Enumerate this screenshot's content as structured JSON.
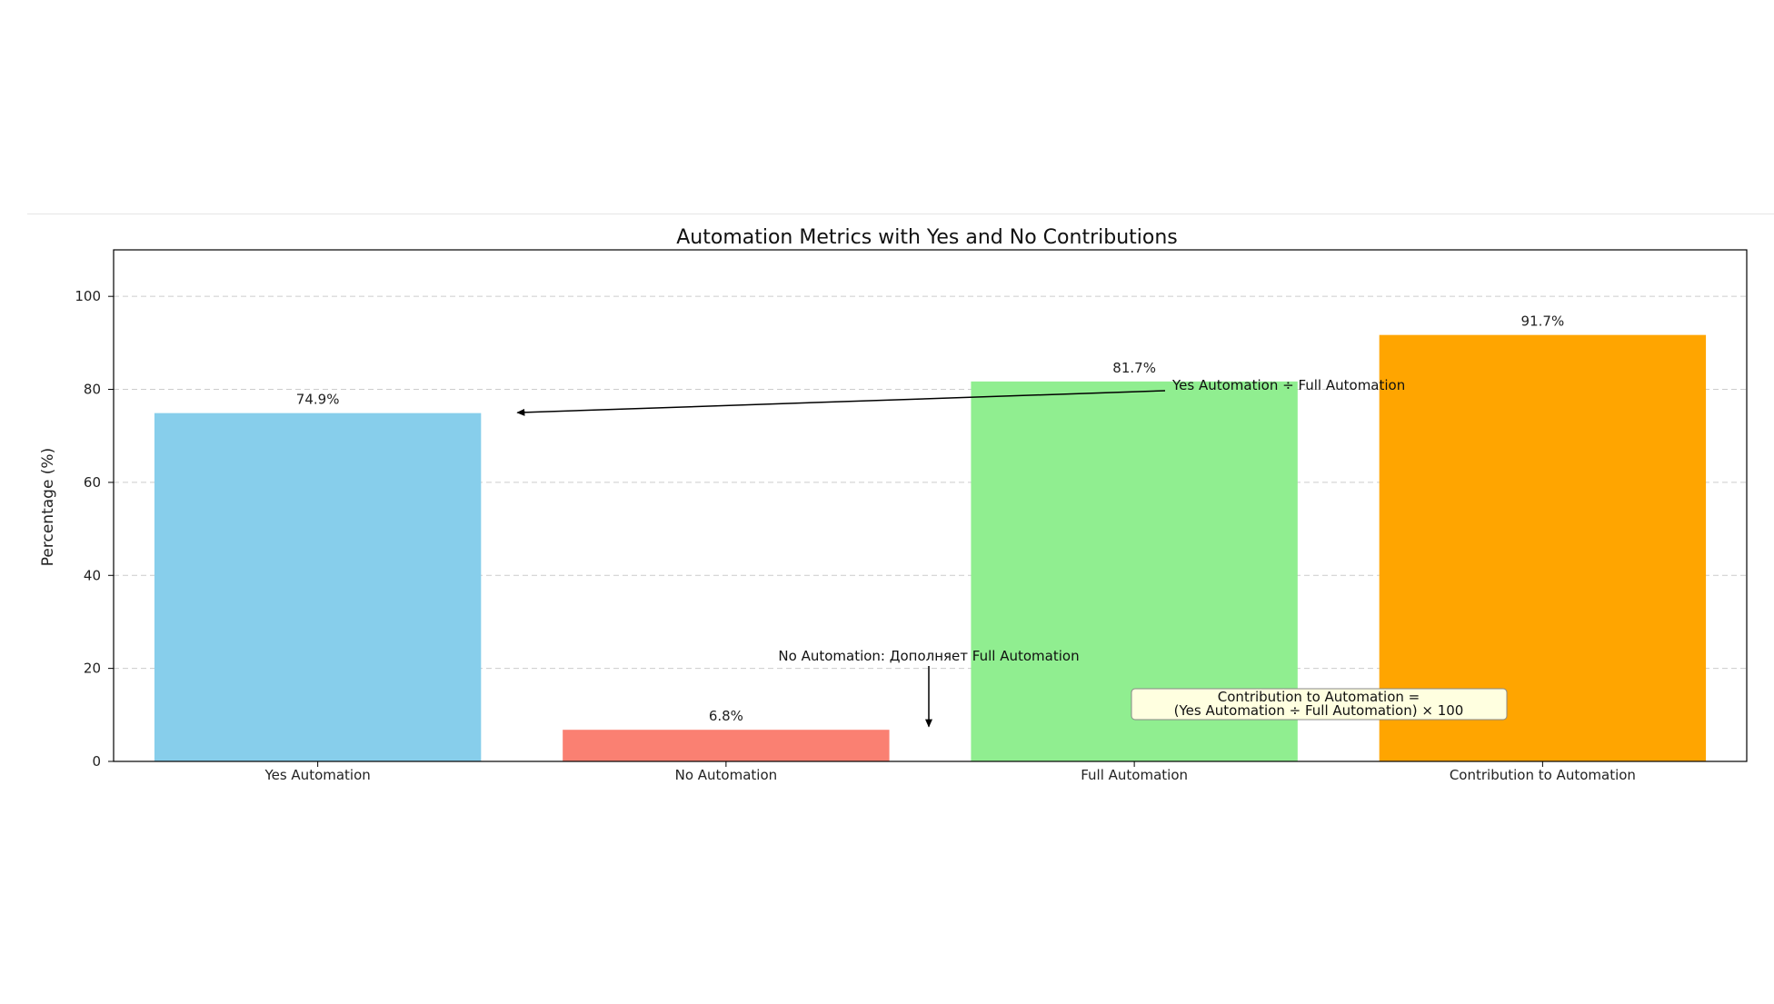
{
  "chart_data": {
    "type": "bar",
    "title": "Automation Metrics with Yes and No Contributions",
    "xlabel": "",
    "ylabel": "Percentage (%)",
    "ylim": [
      0,
      110
    ],
    "yticks": [
      0,
      20,
      40,
      60,
      80,
      100
    ],
    "grid": "y-dashed",
    "categories": [
      "Yes Automation",
      "No Automation",
      "Full Automation",
      "Contribution to Automation"
    ],
    "values": [
      74.9,
      6.8,
      81.7,
      91.7
    ],
    "value_labels": [
      "74.9%",
      "6.8%",
      "81.7%",
      "91.7%"
    ],
    "colors": [
      "#87CEEB",
      "#FA8072",
      "#90EE90",
      "#FFA500"
    ],
    "annotations": [
      {
        "name": "annotation-ratio",
        "text": "Yes Automation ÷ Full Automation",
        "arrow_to_category": 0,
        "arrow_to_y": 75
      },
      {
        "name": "annotation-no-automation",
        "text": "No Automation: Дополняет Full Automation",
        "arrow_to_y": 7.5
      }
    ],
    "formula_box": {
      "line1": "Contribution to Automation =",
      "line2": "(Yes Automation ÷ Full Automation) × 100",
      "background": "#FFFFE0"
    }
  }
}
